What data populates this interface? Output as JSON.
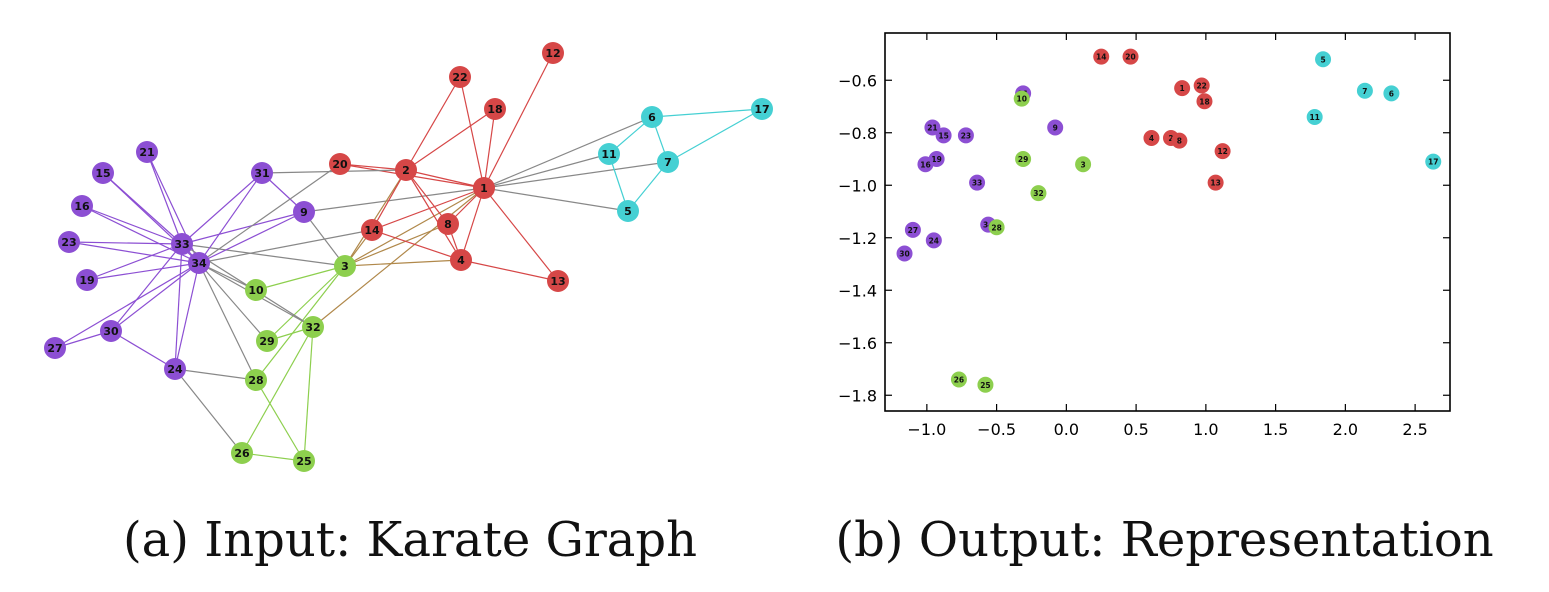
{
  "captions": {
    "a": "(a) Input: Karate Graph",
    "b": "(b) Output: Representation"
  },
  "colors": {
    "purple": "#8c4fd3",
    "red": "#d64747",
    "cyan": "#45d0d3",
    "green": "#8dcf4e",
    "edge_gray": "#888888",
    "edge_mixed": "#b0884a"
  },
  "graph": {
    "nodes": [
      {
        "id": "1",
        "group": "red"
      },
      {
        "id": "2",
        "group": "red"
      },
      {
        "id": "3",
        "group": "green"
      },
      {
        "id": "4",
        "group": "red"
      },
      {
        "id": "5",
        "group": "cyan"
      },
      {
        "id": "6",
        "group": "cyan"
      },
      {
        "id": "7",
        "group": "cyan"
      },
      {
        "id": "8",
        "group": "red"
      },
      {
        "id": "9",
        "group": "purple"
      },
      {
        "id": "10",
        "group": "green"
      },
      {
        "id": "11",
        "group": "cyan"
      },
      {
        "id": "12",
        "group": "red"
      },
      {
        "id": "13",
        "group": "red"
      },
      {
        "id": "14",
        "group": "red"
      },
      {
        "id": "15",
        "group": "purple"
      },
      {
        "id": "16",
        "group": "purple"
      },
      {
        "id": "17",
        "group": "cyan"
      },
      {
        "id": "18",
        "group": "red"
      },
      {
        "id": "19",
        "group": "purple"
      },
      {
        "id": "20",
        "group": "red"
      },
      {
        "id": "21",
        "group": "purple"
      },
      {
        "id": "22",
        "group": "red"
      },
      {
        "id": "23",
        "group": "purple"
      },
      {
        "id": "24",
        "group": "purple"
      },
      {
        "id": "25",
        "group": "green"
      },
      {
        "id": "26",
        "group": "green"
      },
      {
        "id": "27",
        "group": "purple"
      },
      {
        "id": "28",
        "group": "green"
      },
      {
        "id": "29",
        "group": "green"
      },
      {
        "id": "30",
        "group": "purple"
      },
      {
        "id": "31",
        "group": "purple"
      },
      {
        "id": "32",
        "group": "green"
      },
      {
        "id": "33",
        "group": "purple"
      },
      {
        "id": "34",
        "group": "purple"
      }
    ],
    "edges": [
      [
        "1",
        "2"
      ],
      [
        "1",
        "3"
      ],
      [
        "1",
        "4"
      ],
      [
        "1",
        "5"
      ],
      [
        "1",
        "6"
      ],
      [
        "1",
        "7"
      ],
      [
        "1",
        "8"
      ],
      [
        "1",
        "9"
      ],
      [
        "1",
        "11"
      ],
      [
        "1",
        "12"
      ],
      [
        "1",
        "13"
      ],
      [
        "1",
        "14"
      ],
      [
        "1",
        "18"
      ],
      [
        "1",
        "20"
      ],
      [
        "1",
        "22"
      ],
      [
        "1",
        "32"
      ],
      [
        "2",
        "3"
      ],
      [
        "2",
        "4"
      ],
      [
        "2",
        "8"
      ],
      [
        "2",
        "14"
      ],
      [
        "2",
        "18"
      ],
      [
        "2",
        "20"
      ],
      [
        "2",
        "22"
      ],
      [
        "2",
        "31"
      ],
      [
        "3",
        "4"
      ],
      [
        "3",
        "8"
      ],
      [
        "3",
        "9"
      ],
      [
        "3",
        "10"
      ],
      [
        "3",
        "14"
      ],
      [
        "3",
        "28"
      ],
      [
        "3",
        "29"
      ],
      [
        "3",
        "33"
      ],
      [
        "4",
        "8"
      ],
      [
        "4",
        "13"
      ],
      [
        "4",
        "14"
      ],
      [
        "5",
        "7"
      ],
      [
        "5",
        "11"
      ],
      [
        "6",
        "7"
      ],
      [
        "6",
        "11"
      ],
      [
        "6",
        "17"
      ],
      [
        "7",
        "17"
      ],
      [
        "9",
        "31"
      ],
      [
        "9",
        "33"
      ],
      [
        "9",
        "34"
      ],
      [
        "10",
        "34"
      ],
      [
        "14",
        "34"
      ],
      [
        "15",
        "33"
      ],
      [
        "15",
        "34"
      ],
      [
        "16",
        "33"
      ],
      [
        "16",
        "34"
      ],
      [
        "19",
        "33"
      ],
      [
        "19",
        "34"
      ],
      [
        "20",
        "34"
      ],
      [
        "21",
        "33"
      ],
      [
        "21",
        "34"
      ],
      [
        "23",
        "33"
      ],
      [
        "23",
        "34"
      ],
      [
        "24",
        "26"
      ],
      [
        "24",
        "28"
      ],
      [
        "24",
        "30"
      ],
      [
        "24",
        "33"
      ],
      [
        "24",
        "34"
      ],
      [
        "25",
        "26"
      ],
      [
        "25",
        "28"
      ],
      [
        "25",
        "32"
      ],
      [
        "26",
        "32"
      ],
      [
        "27",
        "30"
      ],
      [
        "27",
        "34"
      ],
      [
        "28",
        "34"
      ],
      [
        "29",
        "32"
      ],
      [
        "29",
        "34"
      ],
      [
        "30",
        "33"
      ],
      [
        "30",
        "34"
      ],
      [
        "31",
        "33"
      ],
      [
        "31",
        "34"
      ],
      [
        "32",
        "33"
      ],
      [
        "32",
        "34"
      ],
      [
        "33",
        "34"
      ]
    ]
  },
  "chart_data": {
    "type": "scatter",
    "title": "",
    "xlabel": "",
    "ylabel": "",
    "xlim": [
      -1.3,
      2.75
    ],
    "ylim": [
      -1.86,
      -0.42
    ],
    "xticks": [
      -1.0,
      -0.5,
      0.0,
      0.5,
      1.0,
      1.5,
      2.0,
      2.5
    ],
    "yticks": [
      -0.6,
      -0.8,
      -1.0,
      -1.2,
      -1.4,
      -1.6,
      -1.8
    ],
    "xtick_labels": [
      "−1.0",
      "−0.5",
      "0.0",
      "0.5",
      "1.0",
      "1.5",
      "2.0",
      "2.5"
    ],
    "ytick_labels": [
      "−0.6",
      "−0.8",
      "−1.0",
      "−1.2",
      "−1.4",
      "−1.6",
      "−1.8"
    ],
    "grid": false,
    "points": [
      {
        "label": "14",
        "x": 0.25,
        "y": -0.51,
        "group": "red"
      },
      {
        "label": "20",
        "x": 0.46,
        "y": -0.51,
        "group": "red"
      },
      {
        "label": "1",
        "x": 0.83,
        "y": -0.63,
        "group": "red"
      },
      {
        "label": "22",
        "x": 0.97,
        "y": -0.62,
        "group": "red"
      },
      {
        "label": "18",
        "x": 0.99,
        "y": -0.68,
        "group": "red"
      },
      {
        "label": "4",
        "x": 0.61,
        "y": -0.82,
        "group": "red"
      },
      {
        "label": "2",
        "x": 0.75,
        "y": -0.82,
        "group": "red"
      },
      {
        "label": "8",
        "x": 0.81,
        "y": -0.83,
        "group": "red"
      },
      {
        "label": "12",
        "x": 1.12,
        "y": -0.87,
        "group": "red"
      },
      {
        "label": "13",
        "x": 1.07,
        "y": -0.99,
        "group": "red"
      },
      {
        "label": "5",
        "x": 1.84,
        "y": -0.52,
        "group": "cyan"
      },
      {
        "label": "7",
        "x": 2.14,
        "y": -0.64,
        "group": "cyan"
      },
      {
        "label": "6",
        "x": 2.33,
        "y": -0.65,
        "group": "cyan"
      },
      {
        "label": "11",
        "x": 1.78,
        "y": -0.74,
        "group": "cyan"
      },
      {
        "label": "17",
        "x": 2.63,
        "y": -0.91,
        "group": "cyan"
      },
      {
        "label": "31",
        "x": -0.31,
        "y": -0.65,
        "group": "purple"
      },
      {
        "label": "9",
        "x": -0.08,
        "y": -0.78,
        "group": "purple"
      },
      {
        "label": "21",
        "x": -0.96,
        "y": -0.78,
        "group": "purple"
      },
      {
        "label": "15",
        "x": -0.88,
        "y": -0.81,
        "group": "purple"
      },
      {
        "label": "23",
        "x": -0.72,
        "y": -0.81,
        "group": "purple"
      },
      {
        "label": "19",
        "x": -0.93,
        "y": -0.9,
        "group": "purple"
      },
      {
        "label": "16",
        "x": -1.01,
        "y": -0.92,
        "group": "purple"
      },
      {
        "label": "33",
        "x": -0.64,
        "y": -0.99,
        "group": "purple"
      },
      {
        "label": "34",
        "x": -0.56,
        "y": -1.15,
        "group": "purple"
      },
      {
        "label": "27",
        "x": -1.1,
        "y": -1.17,
        "group": "purple"
      },
      {
        "label": "24",
        "x": -0.95,
        "y": -1.21,
        "group": "purple"
      },
      {
        "label": "30",
        "x": -1.16,
        "y": -1.26,
        "group": "purple"
      },
      {
        "label": "10",
        "x": -0.32,
        "y": -0.67,
        "group": "green"
      },
      {
        "label": "29",
        "x": -0.31,
        "y": -0.9,
        "group": "green"
      },
      {
        "label": "3",
        "x": 0.12,
        "y": -0.92,
        "group": "green"
      },
      {
        "label": "32",
        "x": -0.2,
        "y": -1.03,
        "group": "green"
      },
      {
        "label": "28",
        "x": -0.5,
        "y": -1.16,
        "group": "green"
      },
      {
        "label": "26",
        "x": -0.77,
        "y": -1.74,
        "group": "green"
      },
      {
        "label": "25",
        "x": -0.58,
        "y": -1.76,
        "group": "green"
      }
    ]
  }
}
